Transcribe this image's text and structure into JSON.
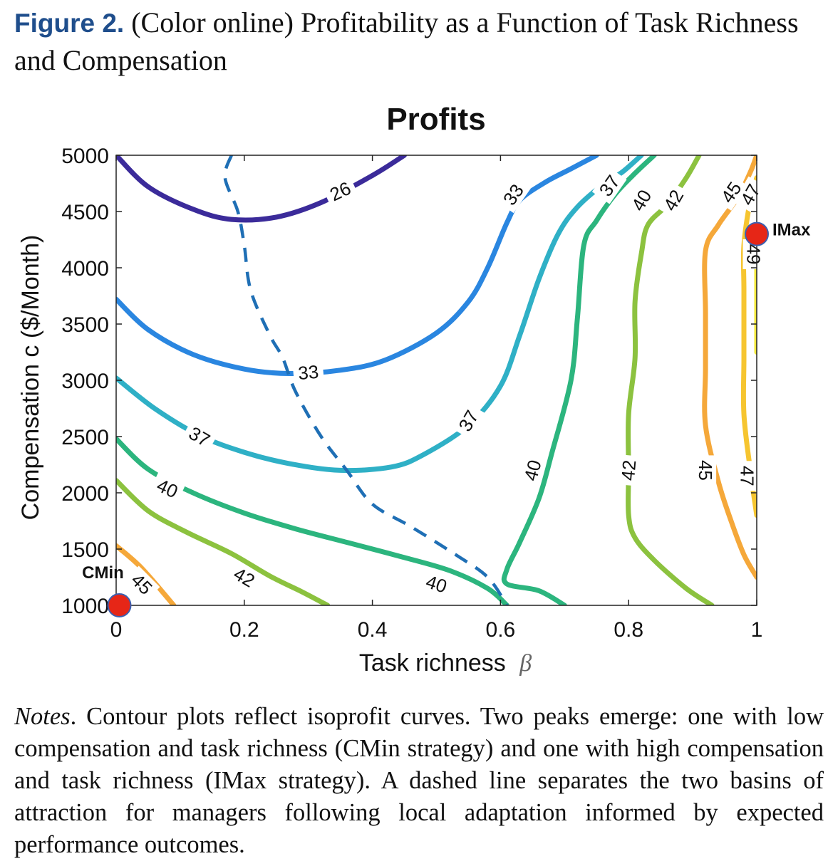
{
  "figure": {
    "label": "Figure 2.",
    "title": "(Color online) Profitability as a Function of Task Richness and Compensation"
  },
  "notes": {
    "label": "Notes",
    "text": ". Contour plots reflect isoprofit curves. Two peaks emerge: one with low compensation and task richness (CMin strategy) and one with high compensation and task richness (IMax strategy). A dashed line separates the two basins of attraction for managers following local adaptation informed by expected performance outcomes."
  },
  "chart_data": {
    "type": "contour",
    "title": "Profits",
    "xlabel": "Task richness",
    "xlabel_symbol": "β",
    "ylabel": "Compensation c ($/Month)",
    "xlim": [
      0,
      1
    ],
    "ylim": [
      1000,
      5000
    ],
    "xticks": [
      "0",
      "0.2",
      "0.4",
      "0.6",
      "0.8",
      "1"
    ],
    "yticks": [
      "1000",
      "1500",
      "2000",
      "2500",
      "3000",
      "3500",
      "4000",
      "4500",
      "5000"
    ],
    "grid": false,
    "colors": {
      "26": "#3b2b9a",
      "33": "#2a86e0",
      "37": "#2fb0c6",
      "40": "#2cb57e",
      "42": "#8cc23f",
      "45": "#f5a83a",
      "47": "#f6c530",
      "49": "#f2e838",
      "divider": "#1f6fb5",
      "marker": "#e62617"
    },
    "contours": [
      {
        "level": "26",
        "points": [
          [
            0.0,
            5000
          ],
          [
            0.05,
            4720
          ],
          [
            0.12,
            4520
          ],
          [
            0.18,
            4430
          ],
          [
            0.25,
            4450
          ],
          [
            0.32,
            4580
          ],
          [
            0.4,
            4820
          ],
          [
            0.45,
            5000
          ]
        ],
        "labels": [
          {
            "text": "26",
            "x": 0.35,
            "y": 4680,
            "angle": -25
          }
        ]
      },
      {
        "level": "33",
        "points": [
          [
            0.0,
            3720
          ],
          [
            0.05,
            3450
          ],
          [
            0.12,
            3230
          ],
          [
            0.2,
            3100
          ],
          [
            0.27,
            3060
          ],
          [
            0.35,
            3090
          ],
          [
            0.42,
            3180
          ],
          [
            0.5,
            3420
          ],
          [
            0.55,
            3700
          ],
          [
            0.58,
            4000
          ],
          [
            0.61,
            4400
          ],
          [
            0.63,
            4600
          ],
          [
            0.67,
            4760
          ],
          [
            0.71,
            4880
          ],
          [
            0.75,
            5000
          ]
        ],
        "labels": [
          {
            "text": "33",
            "x": 0.3,
            "y": 3070,
            "angle": -5
          },
          {
            "text": "33",
            "x": 0.62,
            "y": 4650,
            "angle": -55
          }
        ]
      },
      {
        "level": "37",
        "points": [
          [
            0.0,
            3020
          ],
          [
            0.06,
            2750
          ],
          [
            0.13,
            2510
          ],
          [
            0.2,
            2360
          ],
          [
            0.27,
            2260
          ],
          [
            0.35,
            2200
          ],
          [
            0.43,
            2230
          ],
          [
            0.48,
            2340
          ],
          [
            0.55,
            2600
          ],
          [
            0.6,
            2950
          ],
          [
            0.63,
            3400
          ],
          [
            0.66,
            3900
          ],
          [
            0.69,
            4300
          ],
          [
            0.72,
            4540
          ],
          [
            0.76,
            4740
          ],
          [
            0.79,
            4850
          ],
          [
            0.82,
            5000
          ]
        ],
        "labels": [
          {
            "text": "37",
            "x": 0.13,
            "y": 2500,
            "angle": 30
          },
          {
            "text": "37",
            "x": 0.55,
            "y": 2640,
            "angle": -60
          },
          {
            "text": "37",
            "x": 0.77,
            "y": 4730,
            "angle": -55
          }
        ]
      },
      {
        "level": "40",
        "points": [
          [
            0.0,
            2480
          ],
          [
            0.05,
            2210
          ],
          [
            0.12,
            2000
          ],
          [
            0.2,
            1820
          ],
          [
            0.28,
            1680
          ],
          [
            0.36,
            1560
          ],
          [
            0.44,
            1440
          ],
          [
            0.52,
            1310
          ],
          [
            0.58,
            1150
          ],
          [
            0.61,
            1000
          ]
        ],
        "labels": [
          {
            "text": "40",
            "x": 0.08,
            "y": 2040,
            "angle": 25
          },
          {
            "text": "40",
            "x": 0.5,
            "y": 1190,
            "angle": 18
          }
        ]
      },
      {
        "level": "40",
        "points": [
          [
            0.7,
            1000
          ],
          [
            0.66,
            1130
          ],
          [
            0.61,
            1190
          ],
          [
            0.61,
            1320
          ],
          [
            0.63,
            1560
          ],
          [
            0.66,
            1950
          ],
          [
            0.68,
            2350
          ],
          [
            0.71,
            3000
          ],
          [
            0.72,
            3550
          ],
          [
            0.73,
            4200
          ],
          [
            0.75,
            4420
          ],
          [
            0.78,
            4660
          ],
          [
            0.81,
            4840
          ],
          [
            0.84,
            5000
          ]
        ],
        "labels": [
          {
            "text": "40",
            "x": 0.65,
            "y": 2200,
            "angle": -75
          },
          {
            "text": "40",
            "x": 0.82,
            "y": 4600,
            "angle": -60
          }
        ]
      },
      {
        "level": "42",
        "points": [
          [
            0.0,
            2110
          ],
          [
            0.05,
            1840
          ],
          [
            0.11,
            1650
          ],
          [
            0.18,
            1460
          ],
          [
            0.24,
            1260
          ],
          [
            0.29,
            1120
          ],
          [
            0.33,
            1000
          ]
        ],
        "labels": [
          {
            "text": "42",
            "x": 0.2,
            "y": 1250,
            "angle": 30
          }
        ]
      },
      {
        "level": "42",
        "points": [
          [
            0.93,
            1000
          ],
          [
            0.89,
            1150
          ],
          [
            0.84,
            1400
          ],
          [
            0.81,
            1600
          ],
          [
            0.8,
            1800
          ],
          [
            0.8,
            2200
          ],
          [
            0.8,
            2700
          ],
          [
            0.81,
            3200
          ],
          [
            0.81,
            3700
          ],
          [
            0.82,
            4130
          ],
          [
            0.83,
            4380
          ],
          [
            0.86,
            4560
          ],
          [
            0.89,
            4800
          ],
          [
            0.91,
            5000
          ]
        ],
        "labels": [
          {
            "text": "42",
            "x": 0.8,
            "y": 2200,
            "angle": -85
          },
          {
            "text": "42",
            "x": 0.87,
            "y": 4600,
            "angle": -60
          }
        ]
      },
      {
        "level": "45",
        "points": [
          [
            0.0,
            1530
          ],
          [
            0.04,
            1330
          ],
          [
            0.09,
            1000
          ]
        ],
        "labels": [
          {
            "text": "45",
            "x": 0.04,
            "y": 1190,
            "angle": 45
          }
        ]
      },
      {
        "level": "45",
        "points": [
          [
            1.0,
            1250
          ],
          [
            0.98,
            1450
          ],
          [
            0.96,
            1750
          ],
          [
            0.94,
            2100
          ],
          [
            0.92,
            2600
          ],
          [
            0.92,
            3100
          ],
          [
            0.92,
            3600
          ],
          [
            0.92,
            4150
          ],
          [
            0.94,
            4380
          ],
          [
            0.97,
            4620
          ],
          [
            0.99,
            4850
          ],
          [
            1.0,
            5000
          ]
        ],
        "labels": [
          {
            "text": "45",
            "x": 0.92,
            "y": 2200,
            "angle": 90
          },
          {
            "text": "45",
            "x": 0.96,
            "y": 4670,
            "angle": -55
          }
        ]
      },
      {
        "level": "47",
        "points": [
          [
            1.0,
            1800
          ],
          [
            0.99,
            2200
          ],
          [
            0.98,
            2700
          ],
          [
            0.98,
            3200
          ],
          [
            0.98,
            3800
          ],
          [
            0.98,
            4200
          ],
          [
            0.99,
            4600
          ],
          [
            1.0,
            4800
          ]
        ],
        "labels": [
          {
            "text": "47",
            "x": 0.985,
            "y": 2150,
            "angle": 90
          },
          {
            "text": "47",
            "x": 0.99,
            "y": 4650,
            "angle": -60
          }
        ]
      },
      {
        "level": "49",
        "points": [
          [
            1.0,
            3250
          ],
          [
            1.0,
            3700
          ],
          [
            1.0,
            4100
          ]
        ],
        "labels": [
          {
            "text": "49",
            "x": 0.995,
            "y": 4120,
            "angle": 90
          }
        ]
      }
    ],
    "divider": [
      [
        0.18,
        5000
      ],
      [
        0.17,
        4800
      ],
      [
        0.19,
        4500
      ],
      [
        0.2,
        4200
      ],
      [
        0.21,
        3800
      ],
      [
        0.24,
        3400
      ],
      [
        0.26,
        3200
      ],
      [
        0.28,
        2900
      ],
      [
        0.32,
        2500
      ],
      [
        0.36,
        2200
      ],
      [
        0.4,
        1900
      ],
      [
        0.46,
        1700
      ],
      [
        0.53,
        1450
      ],
      [
        0.58,
        1250
      ],
      [
        0.61,
        1000
      ]
    ],
    "points": [
      {
        "name": "CMin",
        "x": 0.005,
        "y": 1000
      },
      {
        "name": "IMax",
        "x": 1.0,
        "y": 4300
      }
    ]
  }
}
